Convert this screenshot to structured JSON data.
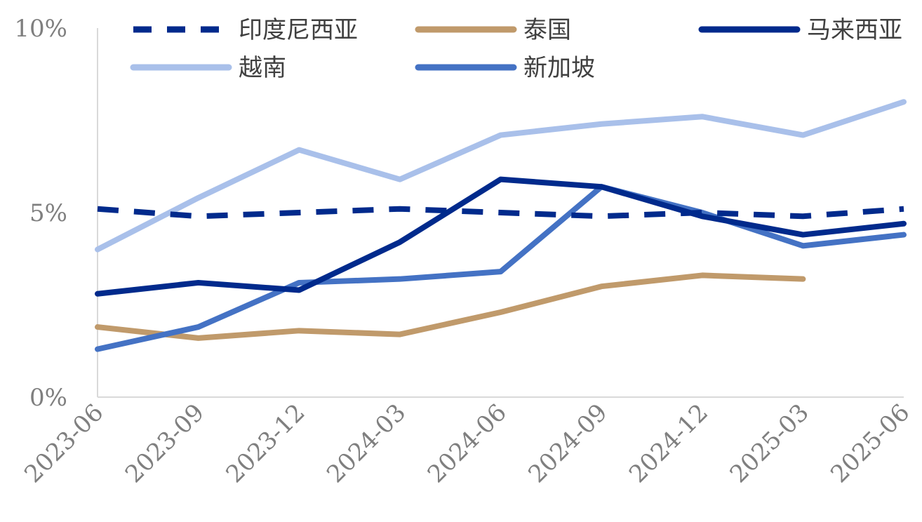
{
  "chart_data": {
    "type": "line",
    "categories": [
      "2023-06",
      "2023-09",
      "2023-12",
      "2024-03",
      "2024-06",
      "2024-09",
      "2024-12",
      "2025-03",
      "2025-06"
    ],
    "y_ticks": [
      "0%",
      "5%",
      "10%"
    ],
    "ylim": [
      0,
      10
    ],
    "grid": false,
    "legend_position": "top",
    "series": [
      {
        "name": "印度尼西亚",
        "color": "#002A8C",
        "dash": "dashed",
        "values": [
          5.1,
          4.9,
          5.0,
          5.1,
          5.0,
          4.9,
          5.0,
          4.9,
          5.1
        ]
      },
      {
        "name": "泰国",
        "color": "#C09A6B",
        "dash": "solid",
        "values": [
          1.9,
          1.6,
          1.8,
          1.7,
          2.3,
          3.0,
          3.3,
          3.2,
          null
        ]
      },
      {
        "name": "马来西亚",
        "color": "#002A8C",
        "dash": "solid",
        "values": [
          2.8,
          3.1,
          2.9,
          4.2,
          5.9,
          5.7,
          4.9,
          4.4,
          4.7
        ]
      },
      {
        "name": "越南",
        "color": "#A9C0EA",
        "dash": "solid",
        "values": [
          4.0,
          5.4,
          6.7,
          5.9,
          7.1,
          7.4,
          7.6,
          7.1,
          8.0
        ]
      },
      {
        "name": "新加坡",
        "color": "#4472C4",
        "dash": "solid",
        "values": [
          1.3,
          1.9,
          3.1,
          3.2,
          3.4,
          5.7,
          5.0,
          4.1,
          4.4
        ]
      }
    ]
  }
}
